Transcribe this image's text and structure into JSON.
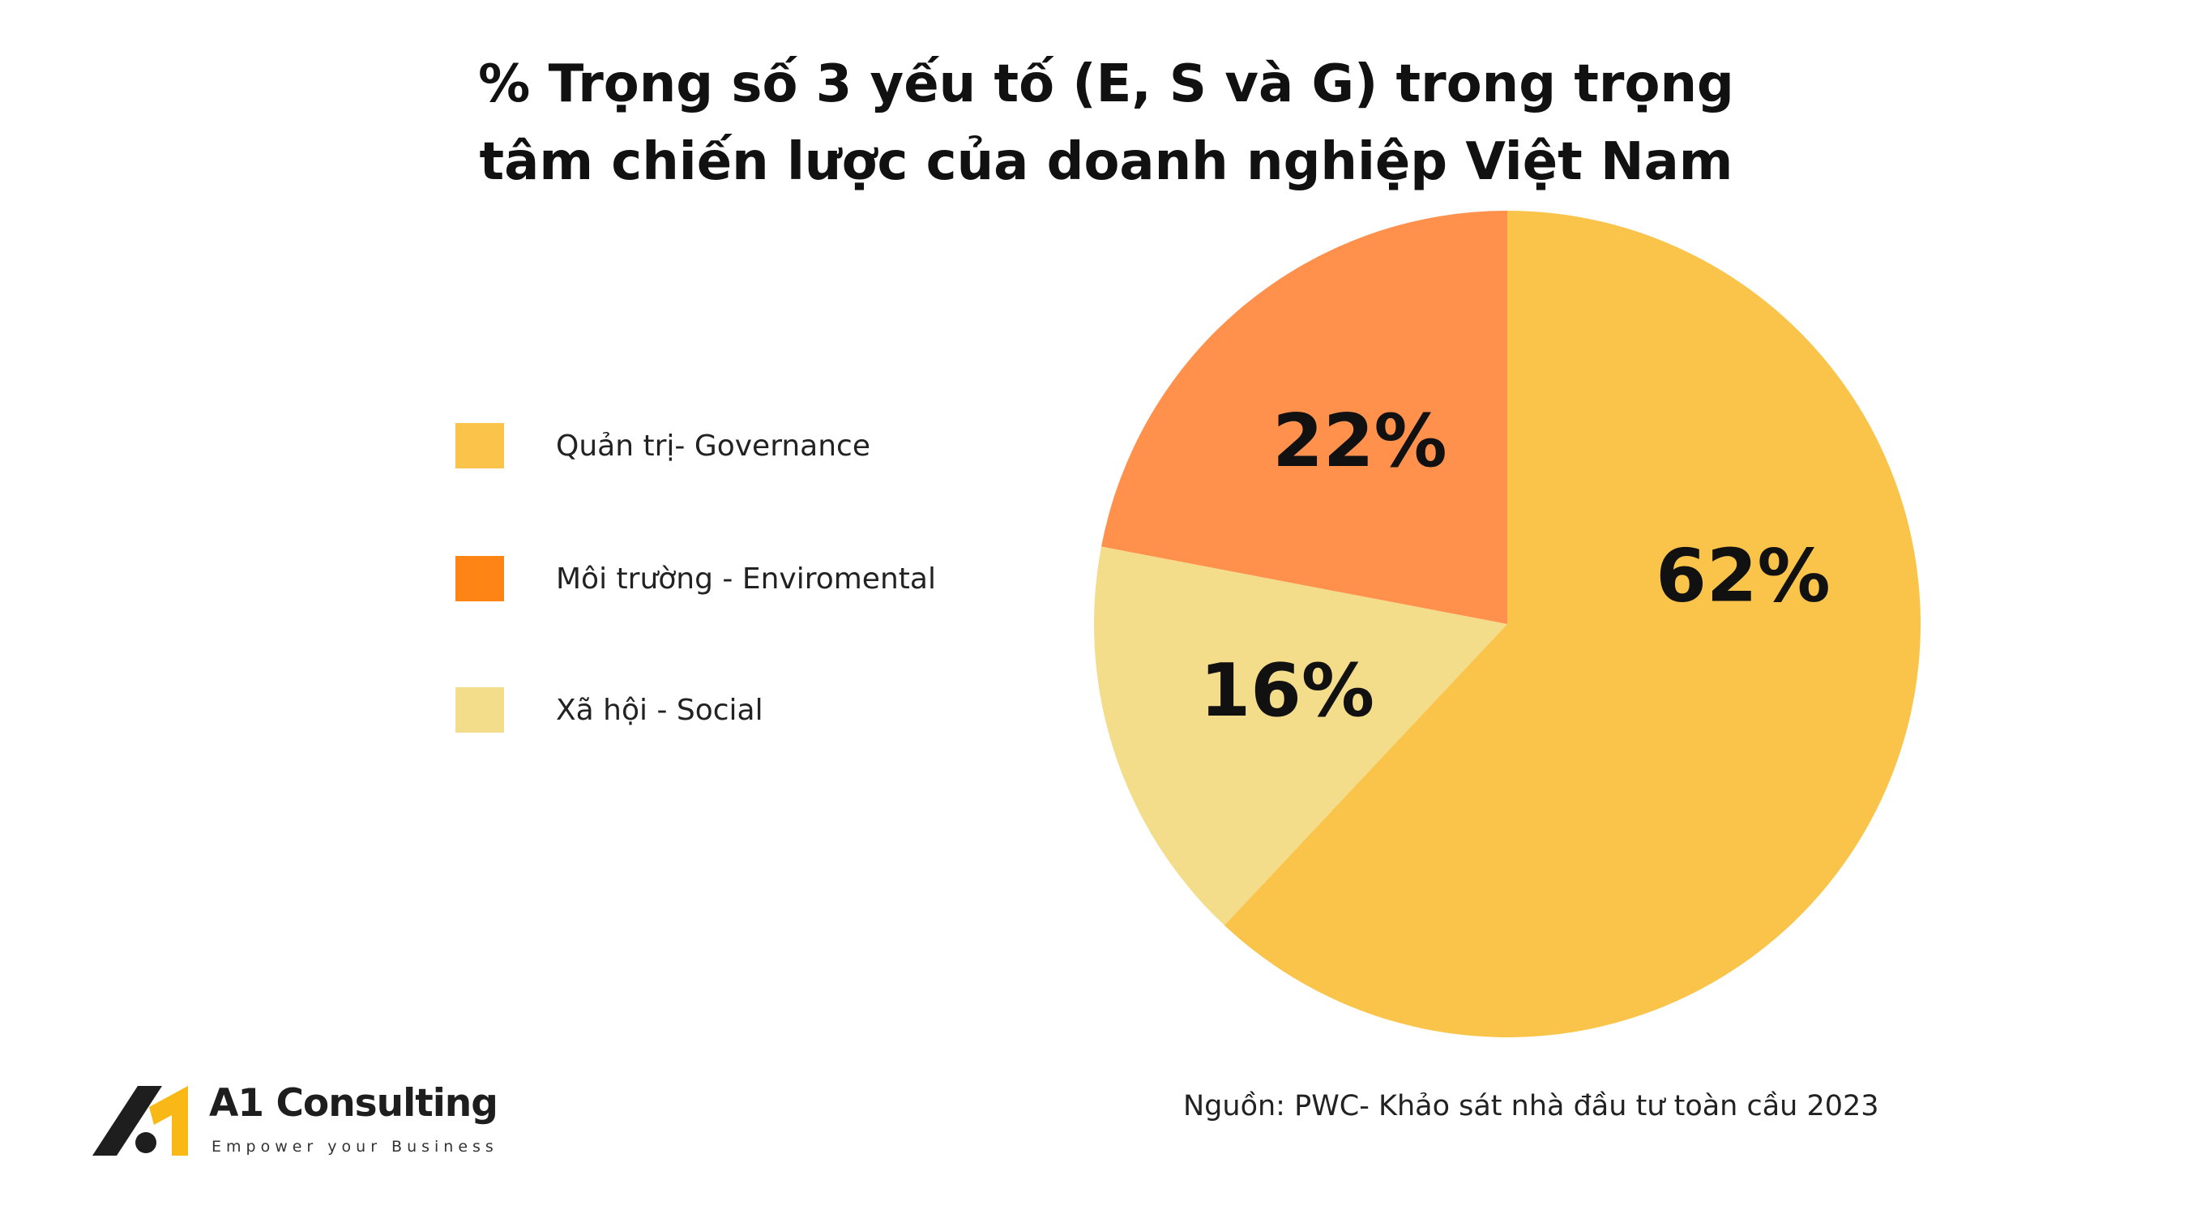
{
  "chart_data": {
    "type": "pie",
    "title_lines": [
      "% Trọng số 3 yếu tố (E, S và G) trong trọng",
      "tâm chiến lược của doanh nghiệp Việt Nam"
    ],
    "slices": [
      {
        "name": "Quản trị- Governance",
        "value": 62,
        "label": "62%",
        "color": "#F9C449"
      },
      {
        "name": "Xã hội - Social",
        "value": 16,
        "label": "16%",
        "color": "#F3DC8A"
      },
      {
        "name": "Môi trường - Enviromental",
        "value": 22,
        "label": "22%",
        "color": "#FF914D"
      }
    ],
    "legend": [
      {
        "label": "Quản trị- Governance",
        "color": "#F9C449"
      },
      {
        "label": "Môi trường - Enviromental",
        "color": "#FF8416"
      },
      {
        "label": "Xã hội - Social",
        "color": "#F3DC8A"
      }
    ],
    "legend_position": "left",
    "start_angle_deg": 0,
    "direction": "clockwise"
  },
  "source": "Nguồn: PWC- Khảo sát nhà đầu tư toàn cầu 2023",
  "logo": {
    "name": "A1 Consulting",
    "tagline": "Empower your Business",
    "accent_color": "#F9B815",
    "dark_color": "#1e1e1e"
  }
}
